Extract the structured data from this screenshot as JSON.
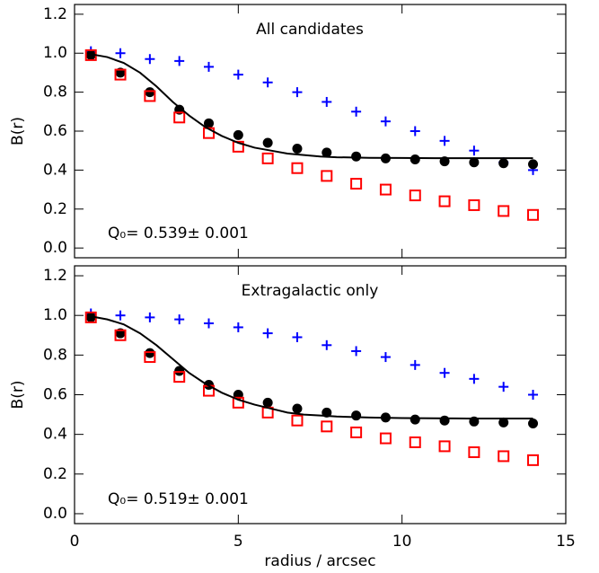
{
  "chart_data": [
    {
      "type": "scatter",
      "title": "All candidates",
      "ylabel": "B(r)",
      "annotation": "Q₀= 0.539± 0.001",
      "xlim": [
        0,
        15
      ],
      "xticks": [
        0,
        5,
        10,
        15
      ],
      "xtick_labels": false,
      "ylim": [
        -0.05,
        1.25
      ],
      "yticks": [
        {
          "value": 0,
          "label": "0.0"
        },
        0.2,
        0.4,
        0.6,
        0.8,
        {
          "value": 1,
          "label": "1.0"
        },
        1.2
      ],
      "x": [
        0.5,
        1.4,
        2.3,
        3.2,
        4.1,
        5.0,
        5.9,
        6.8,
        7.7,
        8.6,
        9.5,
        10.4,
        11.3,
        12.2,
        13.1,
        14.0
      ],
      "series": [
        {
          "marker": "plus",
          "color": "#0000ff",
          "values": [
            1.01,
            1.0,
            0.97,
            0.96,
            0.93,
            0.89,
            0.85,
            0.8,
            0.75,
            0.7,
            0.65,
            0.6,
            0.55,
            0.5,
            0.44,
            0.4
          ]
        },
        {
          "marker": "circle",
          "color": "#000000",
          "values": [
            0.99,
            0.9,
            0.8,
            0.71,
            0.64,
            0.58,
            0.54,
            0.51,
            0.49,
            0.47,
            0.46,
            0.455,
            0.445,
            0.44,
            0.435,
            0.43
          ]
        },
        {
          "marker": "square",
          "color": "#ff0000",
          "values": [
            0.99,
            0.89,
            0.78,
            0.67,
            0.59,
            0.52,
            0.46,
            0.41,
            0.37,
            0.33,
            0.3,
            0.27,
            0.24,
            0.22,
            0.19,
            0.17
          ]
        },
        {
          "marker": "line",
          "color": "#000000",
          "x": [
            0.5,
            1,
            1.5,
            2,
            2.5,
            3,
            3.5,
            4,
            4.5,
            5,
            5.5,
            6,
            6.5,
            7,
            7.5,
            8,
            9,
            10,
            11,
            12,
            14
          ],
          "values": [
            0.995,
            0.98,
            0.95,
            0.9,
            0.83,
            0.75,
            0.68,
            0.62,
            0.575,
            0.54,
            0.515,
            0.5,
            0.485,
            0.477,
            0.47,
            0.466,
            0.463,
            0.462,
            0.461,
            0.461,
            0.461
          ]
        }
      ]
    },
    {
      "type": "scatter",
      "title": "Extragalactic only",
      "ylabel": "B(r)",
      "xlabel": "radius / arcsec",
      "annotation": "Q₀= 0.519± 0.001",
      "xlim": [
        0,
        15
      ],
      "xticks": [
        0,
        5,
        10,
        15
      ],
      "xtick_labels": true,
      "ylim": [
        -0.05,
        1.25
      ],
      "yticks": [
        {
          "value": 0,
          "label": "0.0"
        },
        0.2,
        0.4,
        0.6,
        0.8,
        {
          "value": 1,
          "label": "1.0"
        },
        1.2
      ],
      "x": [
        0.5,
        1.4,
        2.3,
        3.2,
        4.1,
        5.0,
        5.9,
        6.8,
        7.7,
        8.6,
        9.5,
        10.4,
        11.3,
        12.2,
        13.1,
        14.0
      ],
      "series": [
        {
          "marker": "plus",
          "color": "#0000ff",
          "values": [
            1.01,
            1.0,
            0.99,
            0.98,
            0.96,
            0.94,
            0.91,
            0.89,
            0.85,
            0.82,
            0.79,
            0.75,
            0.71,
            0.68,
            0.64,
            0.6
          ]
        },
        {
          "marker": "circle",
          "color": "#000000",
          "values": [
            0.99,
            0.91,
            0.81,
            0.72,
            0.65,
            0.6,
            0.56,
            0.53,
            0.51,
            0.495,
            0.485,
            0.475,
            0.47,
            0.465,
            0.46,
            0.455
          ]
        },
        {
          "marker": "square",
          "color": "#ff0000",
          "values": [
            0.99,
            0.9,
            0.79,
            0.69,
            0.62,
            0.56,
            0.51,
            0.47,
            0.44,
            0.41,
            0.38,
            0.36,
            0.34,
            0.31,
            0.29,
            0.27
          ]
        },
        {
          "marker": "line",
          "color": "#000000",
          "x": [
            0.5,
            1,
            1.5,
            2,
            2.5,
            3,
            3.5,
            4,
            4.5,
            5,
            5.5,
            6,
            6.5,
            7,
            7.5,
            8,
            9,
            10,
            11,
            12,
            14
          ],
          "values": [
            0.995,
            0.98,
            0.955,
            0.91,
            0.85,
            0.78,
            0.71,
            0.655,
            0.61,
            0.575,
            0.55,
            0.53,
            0.51,
            0.5,
            0.495,
            0.49,
            0.485,
            0.482,
            0.481,
            0.48,
            0.48
          ]
        }
      ]
    }
  ]
}
